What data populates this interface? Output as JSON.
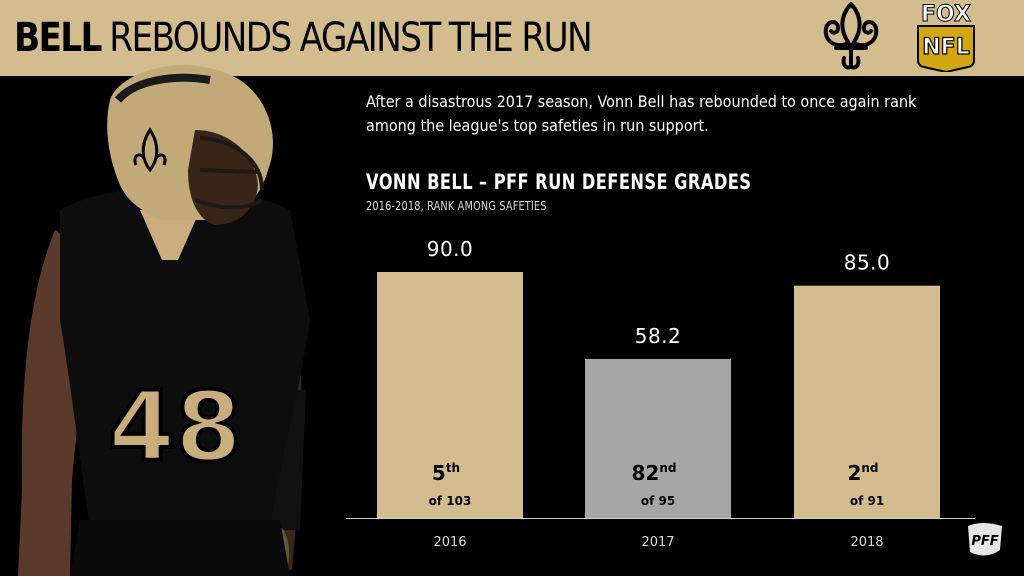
{
  "header": {
    "title_bold": "BELL",
    "title_rest": "REBOUNDS AGAINST THE RUN",
    "fox_text": "FOX",
    "nfl_text": "NFL"
  },
  "subtitle": "After a disastrous 2017 season, Vonn Bell has rebounded to once again rank among the league's top safeties in run support.",
  "player": {
    "jersey_number": "48"
  },
  "chart_data": {
    "type": "bar",
    "title": "VONN BELL – PFF RUN DEFENSE GRADES",
    "subtitle": "2016-2018, RANK AMONG SAFETIES",
    "categories": [
      "2016",
      "2017",
      "2018"
    ],
    "values": [
      90.0,
      58.2,
      85.0
    ],
    "value_labels": [
      "90.0",
      "58.2",
      "85.0"
    ],
    "ranks": [
      {
        "num": "5",
        "suffix": "th",
        "of": "of 103"
      },
      {
        "num": "82",
        "suffix": "nd",
        "of": "of 95"
      },
      {
        "num": "2",
        "suffix": "nd",
        "of": "of 91"
      }
    ],
    "colors": [
      "#d3bc8d",
      "#a6a6a6",
      "#d3bc8d"
    ],
    "ylim": [
      0,
      100
    ],
    "grid": false,
    "legend": "none"
  },
  "colors": {
    "accent": "#d3bc8d",
    "background": "#000000",
    "muted_bar": "#a6a6a6"
  },
  "icons": [
    "fleur-de-lis-icon",
    "fox-nfl-logo",
    "pff-logo"
  ]
}
